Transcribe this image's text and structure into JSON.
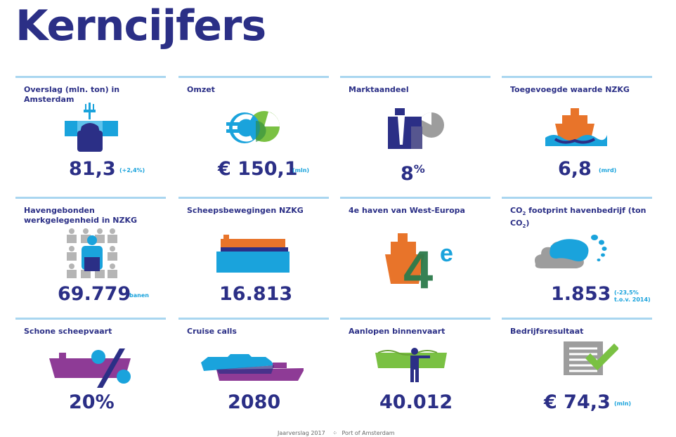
{
  "title": "Kerncijfers",
  "colors": {
    "navy": "#2b2f86",
    "blue": "#1aa3dc",
    "orange": "#e8742a",
    "green": "#7ac143",
    "purple": "#8e3b96",
    "grey": "#9d9d9d"
  },
  "cards": [
    {
      "label": "Overslag (mln. ton) in Amsterdam",
      "value": "81,3",
      "note": "(+2,4%)",
      "icon": "crane-cargo-icon"
    },
    {
      "label": "Omzet",
      "value": "€ 150,1",
      "note": "(mln)",
      "icon": "euro-pie-icon"
    },
    {
      "label": "Marktaandeel",
      "value": "8",
      "value_sup": "%",
      "note": "",
      "icon": "businessman-pie-icon"
    },
    {
      "label": "Toegevoegde waarde NZKG",
      "value": "6,8",
      "note": "(mrd)",
      "icon": "ship-waves-icon"
    },
    {
      "label": "Havengebonden werkgelegenheid in NZKG",
      "value": "69.779",
      "note": "banen",
      "icon": "workers-grid-icon"
    },
    {
      "label": "Scheepsbewegingen NZKG",
      "value": "16.813",
      "note": "",
      "icon": "cargo-barge-icon"
    },
    {
      "label": "4e haven van West-Europa",
      "value": "",
      "note": "",
      "icon": "ship-4e-icon",
      "badge_number": "4",
      "badge_suffix": "e"
    },
    {
      "label_pre": "CO",
      "label_sub": "2",
      "label_mid": " footprint havenbedrijf (ton CO",
      "label_sub2": "2",
      "label_post": ")",
      "value": "1.853",
      "note_line1": "(-23,5%",
      "note_line2": "t.o.v. 2014)",
      "icon": "footprint-cloud-icon"
    },
    {
      "label": "Schone scheepvaart",
      "value": "20%",
      "note": "",
      "icon": "ship-percent-icon"
    },
    {
      "label": "Cruise calls",
      "value": "2080",
      "note": "",
      "icon": "cruise-ship-icon"
    },
    {
      "label": "Aanlopen binnenvaart",
      "value": "40.012",
      "note": "",
      "icon": "inland-vessel-icon"
    },
    {
      "label": "Bedrijfsresultaat",
      "value": "€ 74,3",
      "note": "(mln)",
      "icon": "document-check-icon"
    }
  ],
  "footer": {
    "report": "Jaarverslag 2017",
    "brand": "Port of Amsterdam"
  }
}
